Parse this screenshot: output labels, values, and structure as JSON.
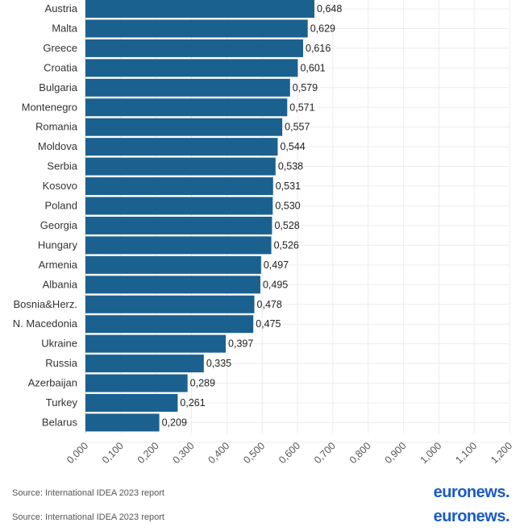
{
  "chart_data": {
    "type": "bar",
    "orientation": "horizontal",
    "categories": [
      "Austria",
      "Malta",
      "Greece",
      "Croatia",
      "Bulgaria",
      "Montenegro",
      "Romania",
      "Moldova",
      "Serbia",
      "Kosovo",
      "Poland",
      "Georgia",
      "Hungary",
      "Armenia",
      "Albania",
      "Bosnia&Herz.",
      "N. Macedonia",
      "Ukraine",
      "Russia",
      "Azerbaijan",
      "Turkey",
      "Belarus"
    ],
    "values": [
      0.648,
      0.629,
      0.616,
      0.601,
      0.579,
      0.571,
      0.557,
      0.544,
      0.538,
      0.531,
      0.53,
      0.528,
      0.526,
      0.497,
      0.495,
      0.478,
      0.475,
      0.397,
      0.335,
      0.289,
      0.261,
      0.209
    ],
    "value_labels": [
      "0,648",
      "0,629",
      "0,616",
      "0,601",
      "0,579",
      "0,571",
      "0,557",
      "0,544",
      "0,538",
      "0,531",
      "0,530",
      "0,528",
      "0,526",
      "0,497",
      "0,495",
      "0,478",
      "0,475",
      "0,397",
      "0,335",
      "0,289",
      "0,261",
      "0,209"
    ],
    "xlim": [
      0,
      1.2
    ],
    "x_ticks": [
      0,
      0.1,
      0.2,
      0.3,
      0.4,
      0.5,
      0.6,
      0.7,
      0.8,
      0.9,
      1.0,
      1.1,
      1.2
    ],
    "x_tick_labels": [
      "0,000",
      "0,100",
      "0,200",
      "0,300",
      "0,400",
      "0,500",
      "0,600",
      "0,700",
      "0,800",
      "0,900",
      "1,000",
      "1,100",
      "1,200"
    ],
    "bar_color": "#1a6190",
    "grid": true,
    "title": "",
    "xlabel": "",
    "ylabel": ""
  },
  "footer": [
    {
      "source": "Source: International IDEA 2023 report",
      "logo": "euronews",
      "logo_dot": "."
    },
    {
      "source": "Source: International IDEA 2023 report",
      "logo": "euronews",
      "logo_dot": "."
    }
  ]
}
